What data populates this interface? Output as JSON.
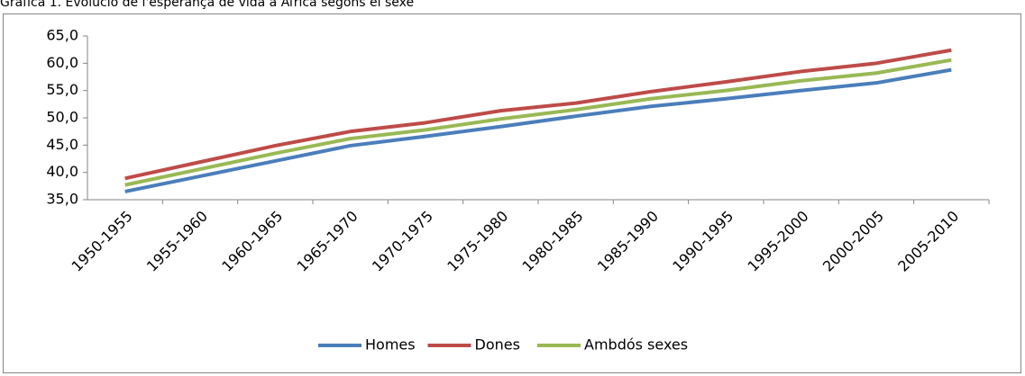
{
  "chart_data": {
    "type": "line",
    "title": "Gràfica 1. Evolució de l'esperança de vida a Àfrica segons el sexe",
    "categories": [
      "1950-1955",
      "1955-1960",
      "1960-1965",
      "1965-1970",
      "1970-1975",
      "1975-1980",
      "1980-1985",
      "1985-1990",
      "1990-1995",
      "1995-2000",
      "2000-2005",
      "2005-2010"
    ],
    "series": [
      {
        "name": "Homes",
        "color": "#4a7ebb",
        "values": [
          36.5,
          39.3,
          42.1,
          44.9,
          46.6,
          48.4,
          50.3,
          52.1,
          53.5,
          55.0,
          56.4,
          58.8
        ]
      },
      {
        "name": "Dones",
        "color": "#be4b48",
        "values": [
          38.9,
          41.9,
          44.9,
          47.5,
          49.1,
          51.3,
          52.7,
          54.8,
          56.6,
          58.5,
          60.0,
          62.4
        ]
      },
      {
        "name": "Ambdós sexes",
        "color": "#98b954",
        "values": [
          37.7,
          40.6,
          43.5,
          46.2,
          47.8,
          49.8,
          51.5,
          53.5,
          55.0,
          56.8,
          58.2,
          60.6
        ]
      }
    ],
    "ylim": [
      35,
      65
    ],
    "yticks": [
      {
        "value": 35,
        "label": "35,0"
      },
      {
        "value": 40,
        "label": "40,0"
      },
      {
        "value": 45,
        "label": "45,0"
      },
      {
        "value": 50,
        "label": "50,0"
      },
      {
        "value": 55,
        "label": "55,0"
      },
      {
        "value": 60,
        "label": "60,0"
      },
      {
        "value": 65,
        "label": "65,0"
      }
    ],
    "legend": "bottom"
  }
}
